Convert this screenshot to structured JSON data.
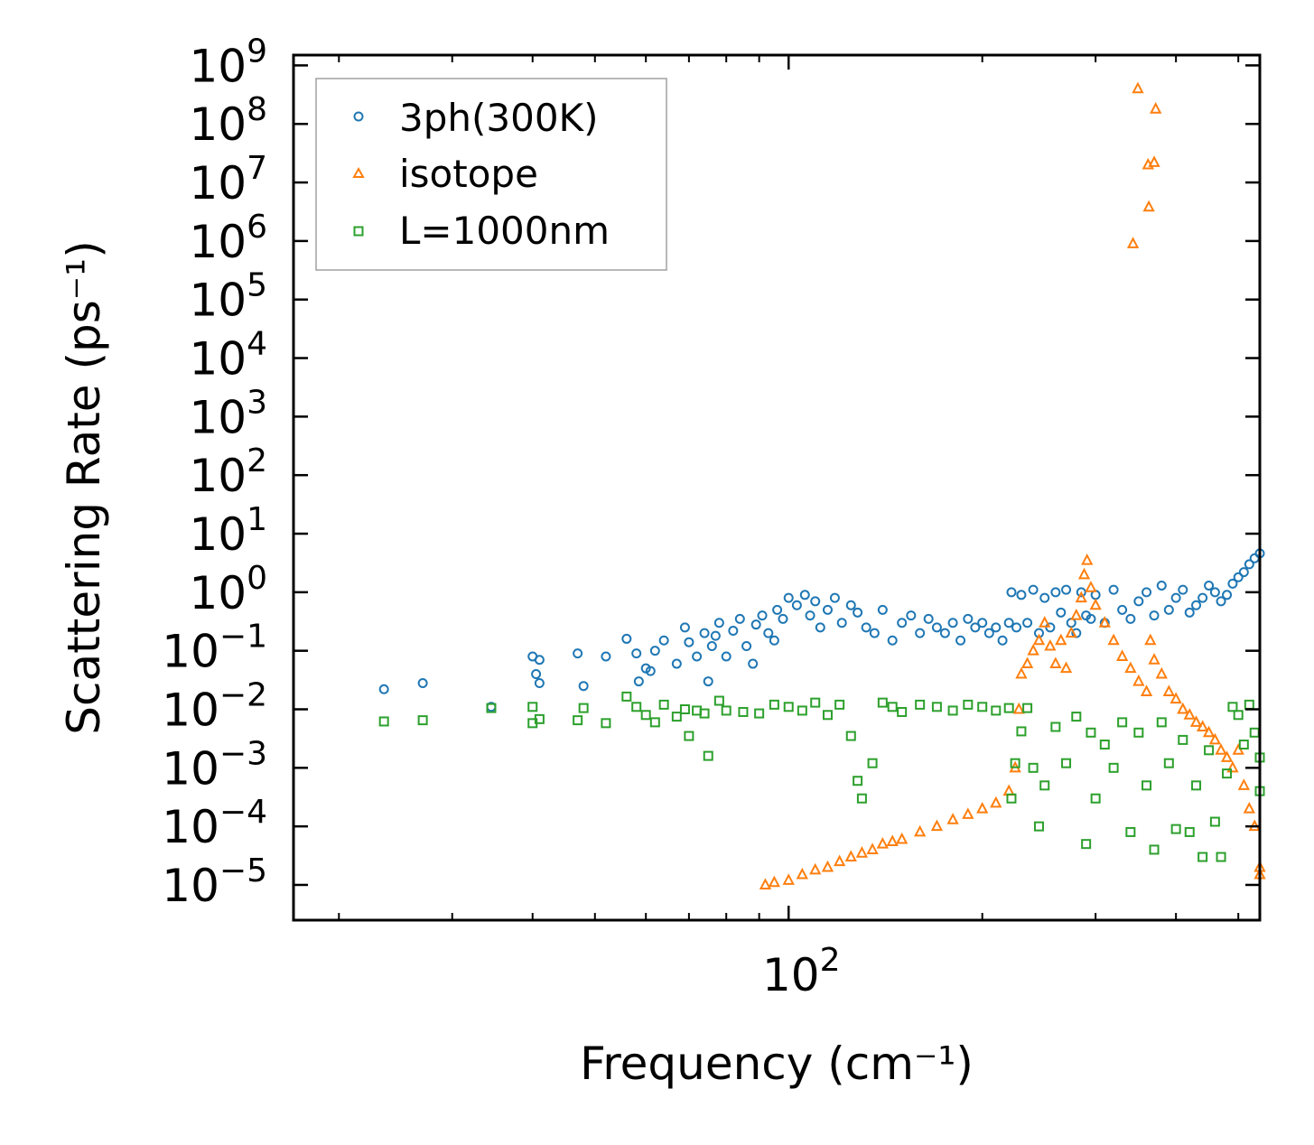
{
  "chart_data": {
    "type": "scatter",
    "title": "",
    "xlabel": "Frequency (cm⁻¹)",
    "ylabel": "Scattering Rate (ps⁻¹)",
    "xscale": "log",
    "yscale": "log",
    "xlim": [
      17,
      540
    ],
    "ylim": [
      2.5e-06,
      1500000000
    ],
    "x_major_ticks": [
      {
        "value": 100,
        "label": "10",
        "exp": "2"
      }
    ],
    "y_major_ticks": [
      {
        "value": 1e-05,
        "label": "10",
        "exp": "−5"
      },
      {
        "value": 0.0001,
        "label": "10",
        "exp": "−4"
      },
      {
        "value": 0.001,
        "label": "10",
        "exp": "−3"
      },
      {
        "value": 0.01,
        "label": "10",
        "exp": "−2"
      },
      {
        "value": 0.1,
        "label": "10",
        "exp": "−1"
      },
      {
        "value": 1,
        "label": "10",
        "exp": "0"
      },
      {
        "value": 10,
        "label": "10",
        "exp": "1"
      },
      {
        "value": 100,
        "label": "10",
        "exp": "2"
      },
      {
        "value": 1000,
        "label": "10",
        "exp": "3"
      },
      {
        "value": 10000,
        "label": "10",
        "exp": "4"
      },
      {
        "value": 100000,
        "label": "10",
        "exp": "5"
      },
      {
        "value": 1000000,
        "label": "10",
        "exp": "6"
      },
      {
        "value": 10000000,
        "label": "10",
        "exp": "7"
      },
      {
        "value": 100000000,
        "label": "10",
        "exp": "8"
      },
      {
        "value": 1000000000,
        "label": "10",
        "exp": "9"
      }
    ],
    "legend_position": "top-left",
    "series": [
      {
        "name": "3ph(300K)",
        "marker": "circle",
        "color": "#1f77b4",
        "points": [
          [
            23.5,
            0.022
          ],
          [
            27,
            0.028
          ],
          [
            34.5,
            0.011
          ],
          [
            40,
            0.08
          ],
          [
            41,
            0.07
          ],
          [
            40.5,
            0.04
          ],
          [
            41,
            0.028
          ],
          [
            47,
            0.09
          ],
          [
            48,
            0.025
          ],
          [
            52,
            0.08
          ],
          [
            56,
            0.16
          ],
          [
            58,
            0.09
          ],
          [
            58.5,
            0.03
          ],
          [
            60,
            0.05
          ],
          [
            62,
            0.1
          ],
          [
            61,
            0.045
          ],
          [
            64,
            0.15
          ],
          [
            67,
            0.06
          ],
          [
            69,
            0.25
          ],
          [
            70,
            0.14
          ],
          [
            72,
            0.08
          ],
          [
            74,
            0.2
          ],
          [
            75,
            0.03
          ],
          [
            76,
            0.12
          ],
          [
            77,
            0.18
          ],
          [
            78,
            0.3
          ],
          [
            80,
            0.08
          ],
          [
            82,
            0.22
          ],
          [
            84,
            0.35
          ],
          [
            86,
            0.12
          ],
          [
            88,
            0.06
          ],
          [
            89,
            0.28
          ],
          [
            91,
            0.4
          ],
          [
            93,
            0.2
          ],
          [
            95,
            0.15
          ],
          [
            96,
            0.5
          ],
          [
            98,
            0.35
          ],
          [
            100,
            0.8
          ],
          [
            103,
            0.6
          ],
          [
            106,
            0.9
          ],
          [
            108,
            0.4
          ],
          [
            110,
            0.7
          ],
          [
            112,
            0.25
          ],
          [
            115,
            0.5
          ],
          [
            118,
            0.8
          ],
          [
            121,
            0.3
          ],
          [
            125,
            0.6
          ],
          [
            128,
            0.45
          ],
          [
            132,
            0.25
          ],
          [
            136,
            0.2
          ],
          [
            140,
            0.5
          ],
          [
            145,
            0.15
          ],
          [
            150,
            0.3
          ],
          [
            155,
            0.4
          ],
          [
            160,
            0.2
          ],
          [
            165,
            0.35
          ],
          [
            170,
            0.25
          ],
          [
            175,
            0.2
          ],
          [
            180,
            0.3
          ],
          [
            185,
            0.15
          ],
          [
            190,
            0.35
          ],
          [
            195,
            0.25
          ],
          [
            200,
            0.3
          ],
          [
            205,
            0.2
          ],
          [
            210,
            0.25
          ],
          [
            215,
            0.15
          ],
          [
            220,
            0.3
          ],
          [
            222,
            1.0
          ],
          [
            226,
            0.25
          ],
          [
            230,
            0.9
          ],
          [
            235,
            0.3
          ],
          [
            240,
            1.1
          ],
          [
            245,
            0.2
          ],
          [
            250,
            0.8
          ],
          [
            255,
            0.25
          ],
          [
            260,
            1.0
          ],
          [
            265,
            0.45
          ],
          [
            270,
            1.1
          ],
          [
            275,
            0.3
          ],
          [
            280,
            0.2
          ],
          [
            285,
            1.0
          ],
          [
            290,
            0.4
          ],
          [
            295,
            0.35
          ],
          [
            300,
            0.9
          ],
          [
            310,
            0.3
          ],
          [
            320,
            1.1
          ],
          [
            330,
            0.5
          ],
          [
            340,
            0.35
          ],
          [
            350,
            0.7
          ],
          [
            360,
            1.0
          ],
          [
            370,
            0.4
          ],
          [
            380,
            1.3
          ],
          [
            390,
            0.5
          ],
          [
            400,
            0.8
          ],
          [
            410,
            1.1
          ],
          [
            420,
            0.45
          ],
          [
            430,
            0.6
          ],
          [
            440,
            0.8
          ],
          [
            450,
            1.3
          ],
          [
            460,
            1.0
          ],
          [
            470,
            0.7
          ],
          [
            480,
            0.9
          ],
          [
            490,
            1.4
          ],
          [
            500,
            1.8
          ],
          [
            510,
            2.2
          ],
          [
            520,
            3.0
          ],
          [
            530,
            3.8
          ],
          [
            540,
            4.6
          ]
        ]
      },
      {
        "name": "isotope",
        "marker": "triangle",
        "color": "#ff7f0e",
        "points": [
          [
            349,
            400000000
          ],
          [
            372,
            180000000
          ],
          [
            362,
            20000000
          ],
          [
            370,
            22000000
          ],
          [
            363,
            3800000
          ],
          [
            343,
            900000
          ],
          [
            92,
            1e-05
          ],
          [
            95,
            1.1e-05
          ],
          [
            100,
            1.2e-05
          ],
          [
            105,
            1.5e-05
          ],
          [
            110,
            1.8e-05
          ],
          [
            115,
            2e-05
          ],
          [
            120,
            2.5e-05
          ],
          [
            125,
            3e-05
          ],
          [
            130,
            3.5e-05
          ],
          [
            135,
            4e-05
          ],
          [
            140,
            5e-05
          ],
          [
            145,
            5.5e-05
          ],
          [
            150,
            6e-05
          ],
          [
            160,
            8e-05
          ],
          [
            170,
            0.0001
          ],
          [
            180,
            0.00013
          ],
          [
            190,
            0.00016
          ],
          [
            200,
            0.0002
          ],
          [
            210,
            0.00025
          ],
          [
            220,
            0.0004
          ],
          [
            225,
            0.001
          ],
          [
            228,
            0.01
          ],
          [
            230,
            0.04
          ],
          [
            235,
            0.06
          ],
          [
            240,
            0.1
          ],
          [
            245,
            0.15
          ],
          [
            250,
            0.3
          ],
          [
            255,
            0.12
          ],
          [
            260,
            0.06
          ],
          [
            265,
            0.15
          ],
          [
            270,
            0.05
          ],
          [
            275,
            0.2
          ],
          [
            280,
            0.4
          ],
          [
            285,
            0.8
          ],
          [
            288,
            2.0
          ],
          [
            291,
            3.5
          ],
          [
            295,
            1.2
          ],
          [
            300,
            0.6
          ],
          [
            310,
            0.3
          ],
          [
            320,
            0.15
          ],
          [
            330,
            0.08
          ],
          [
            340,
            0.05
          ],
          [
            350,
            0.03
          ],
          [
            360,
            0.02
          ],
          [
            365,
            0.15
          ],
          [
            370,
            0.07
          ],
          [
            380,
            0.04
          ],
          [
            390,
            0.02
          ],
          [
            400,
            0.015
          ],
          [
            410,
            0.01
          ],
          [
            420,
            0.008
          ],
          [
            430,
            0.006
          ],
          [
            440,
            0.005
          ],
          [
            450,
            0.004
          ],
          [
            460,
            0.003
          ],
          [
            470,
            0.002
          ],
          [
            480,
            0.0015
          ],
          [
            490,
            0.001
          ],
          [
            500,
            0.002
          ],
          [
            510,
            0.0005
          ],
          [
            520,
            0.0002
          ],
          [
            530,
            0.0001
          ],
          [
            540,
            2e-05
          ],
          [
            540,
            1.5e-05
          ]
        ]
      },
      {
        "name": "L=1000nm",
        "marker": "square",
        "color": "#2ca02c",
        "points": [
          [
            23.5,
            0.0062
          ],
          [
            27,
            0.0065
          ],
          [
            34.5,
            0.0105
          ],
          [
            40,
            0.011
          ],
          [
            40,
            0.0058
          ],
          [
            41,
            0.0068
          ],
          [
            47,
            0.0065
          ],
          [
            48,
            0.0105
          ],
          [
            52,
            0.0058
          ],
          [
            56,
            0.0165
          ],
          [
            58,
            0.011
          ],
          [
            60,
            0.008
          ],
          [
            62,
            0.006
          ],
          [
            64,
            0.012
          ],
          [
            67,
            0.0075
          ],
          [
            69,
            0.01
          ],
          [
            70,
            0.0035
          ],
          [
            72,
            0.0095
          ],
          [
            74,
            0.0085
          ],
          [
            75,
            0.0016
          ],
          [
            78,
            0.014
          ],
          [
            80,
            0.0095
          ],
          [
            85,
            0.009
          ],
          [
            90,
            0.0085
          ],
          [
            95,
            0.012
          ],
          [
            100,
            0.011
          ],
          [
            105,
            0.0095
          ],
          [
            110,
            0.013
          ],
          [
            115,
            0.008
          ],
          [
            120,
            0.012
          ],
          [
            125,
            0.0035
          ],
          [
            128,
            0.0006
          ],
          [
            130,
            0.0003
          ],
          [
            135,
            0.0012
          ],
          [
            140,
            0.013
          ],
          [
            145,
            0.011
          ],
          [
            150,
            0.009
          ],
          [
            160,
            0.012
          ],
          [
            170,
            0.011
          ],
          [
            180,
            0.0095
          ],
          [
            190,
            0.012
          ],
          [
            200,
            0.011
          ],
          [
            210,
            0.0095
          ],
          [
            220,
            0.0105
          ],
          [
            222,
            0.0003
          ],
          [
            225,
            0.0012
          ],
          [
            230,
            0.0042
          ],
          [
            235,
            0.0105
          ],
          [
            240,
            0.001
          ],
          [
            245,
            0.0001
          ],
          [
            250,
            0.0005
          ],
          [
            260,
            0.005
          ],
          [
            270,
            0.0012
          ],
          [
            280,
            0.0075
          ],
          [
            290,
            5e-05
          ],
          [
            295,
            0.004
          ],
          [
            300,
            0.0003
          ],
          [
            310,
            0.0025
          ],
          [
            320,
            0.001
          ],
          [
            330,
            0.006
          ],
          [
            340,
            8e-05
          ],
          [
            350,
            0.004
          ],
          [
            360,
            0.0005
          ],
          [
            370,
            4e-05
          ],
          [
            380,
            0.006
          ],
          [
            390,
            0.0012
          ],
          [
            400,
            9e-05
          ],
          [
            410,
            0.003
          ],
          [
            420,
            8e-05
          ],
          [
            430,
            0.0005
          ],
          [
            440,
            3e-05
          ],
          [
            450,
            0.002
          ],
          [
            460,
            0.00012
          ],
          [
            470,
            3e-05
          ],
          [
            480,
            0.0008
          ],
          [
            490,
            0.011
          ],
          [
            500,
            0.008
          ],
          [
            510,
            0.0025
          ],
          [
            520,
            0.012
          ],
          [
            530,
            0.004
          ],
          [
            540,
            0.0015
          ],
          [
            540,
            0.0004
          ]
        ]
      }
    ]
  }
}
